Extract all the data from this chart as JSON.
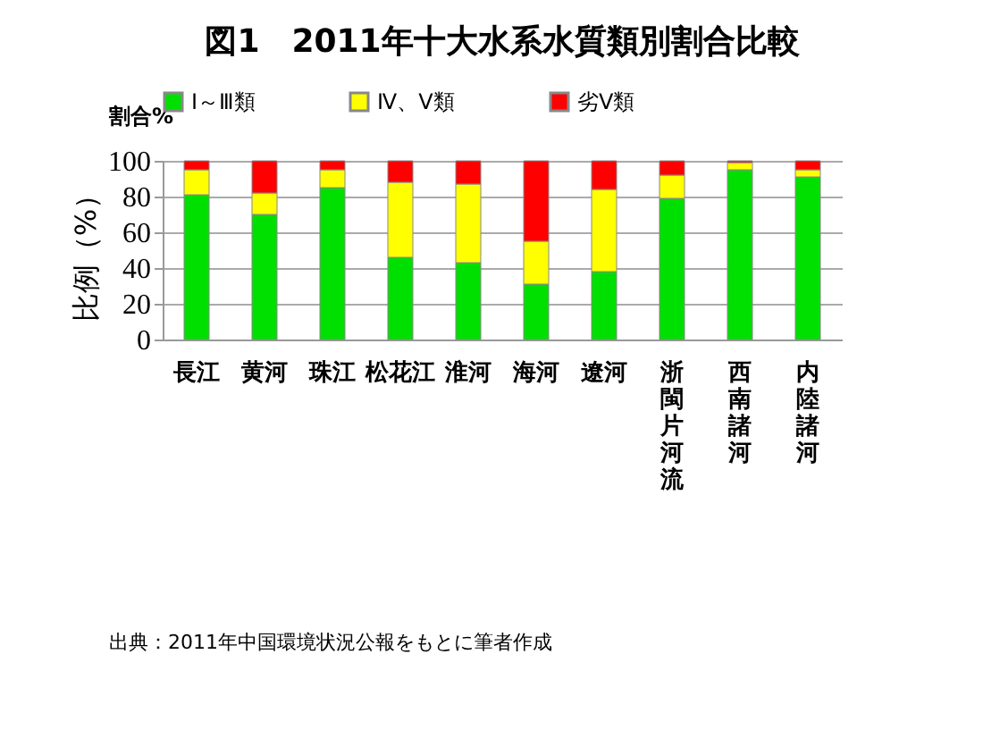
{
  "chart_data": {
    "type": "bar",
    "stacked": true,
    "title": "図1　2011年十大水系水質類別割合比較",
    "ylabel": "比例（%）",
    "annotations": [
      "割合%",
      "出典：2011年中国環境状況公報をもとに筆者作成"
    ],
    "categories": [
      "長江",
      "黄河",
      "珠江",
      "松花江",
      "淮河",
      "海河",
      "遼河",
      "浙閩片河流",
      "西南諸河",
      "内陸諸河"
    ],
    "series": [
      {
        "name": "Ⅰ～Ⅲ類",
        "color": "#00e000",
        "values": [
          81,
          70,
          85,
          46,
          43,
          31,
          38,
          79,
          95,
          91
        ]
      },
      {
        "name": "Ⅳ、Ⅴ類",
        "color": "#ffff00",
        "values": [
          14,
          12,
          10,
          42,
          44,
          24,
          46,
          13,
          4,
          4
        ]
      },
      {
        "name": "劣Ⅴ類",
        "color": "#ff0000",
        "values": [
          5,
          18,
          5,
          12,
          13,
          45,
          16,
          8,
          1,
          5
        ]
      }
    ],
    "ylim": [
      0,
      100
    ],
    "yticks": [
      0,
      20,
      40,
      60,
      80,
      100
    ],
    "grid": "y",
    "legend": "top"
  }
}
